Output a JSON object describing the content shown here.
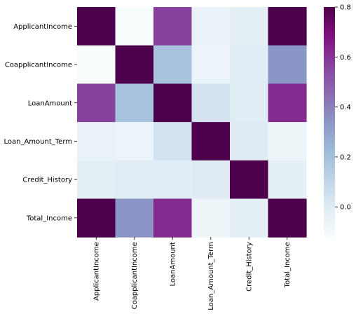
{
  "chart_data": {
    "type": "heatmap",
    "title": "",
    "xlabel": "",
    "ylabel": "",
    "rows": [
      "ApplicantIncome",
      "CoapplicantIncome",
      "LoanAmount",
      "Loan_Amount_Term",
      "Credit_History",
      "Total_Income"
    ],
    "cols": [
      "ApplicantIncome",
      "CoapplicantIncome",
      "LoanAmount",
      "Loan_Amount_Term",
      "Credit_History",
      "Total_Income"
    ],
    "values": [
      [
        1.0,
        -0.12,
        0.57,
        -0.05,
        -0.02,
        0.89
      ],
      [
        -0.12,
        1.0,
        0.19,
        -0.06,
        -0.01,
        0.34
      ],
      [
        0.57,
        0.19,
        1.0,
        0.04,
        -0.01,
        0.62
      ],
      [
        -0.05,
        -0.06,
        0.04,
        1.0,
        0.0,
        -0.07
      ],
      [
        -0.02,
        -0.01,
        -0.01,
        0.0,
        1.0,
        -0.03
      ],
      [
        0.89,
        0.34,
        0.62,
        -0.07,
        -0.03,
        1.0
      ]
    ],
    "vmin": -0.12,
    "vmax": 0.8,
    "colormap": "BuPu",
    "colorbar_ticks": [
      0.0,
      0.2,
      0.4,
      0.6,
      0.8
    ],
    "colorbar_tick_labels": [
      "0.0",
      "0.2",
      "0.4",
      "0.6",
      "0.8"
    ]
  }
}
